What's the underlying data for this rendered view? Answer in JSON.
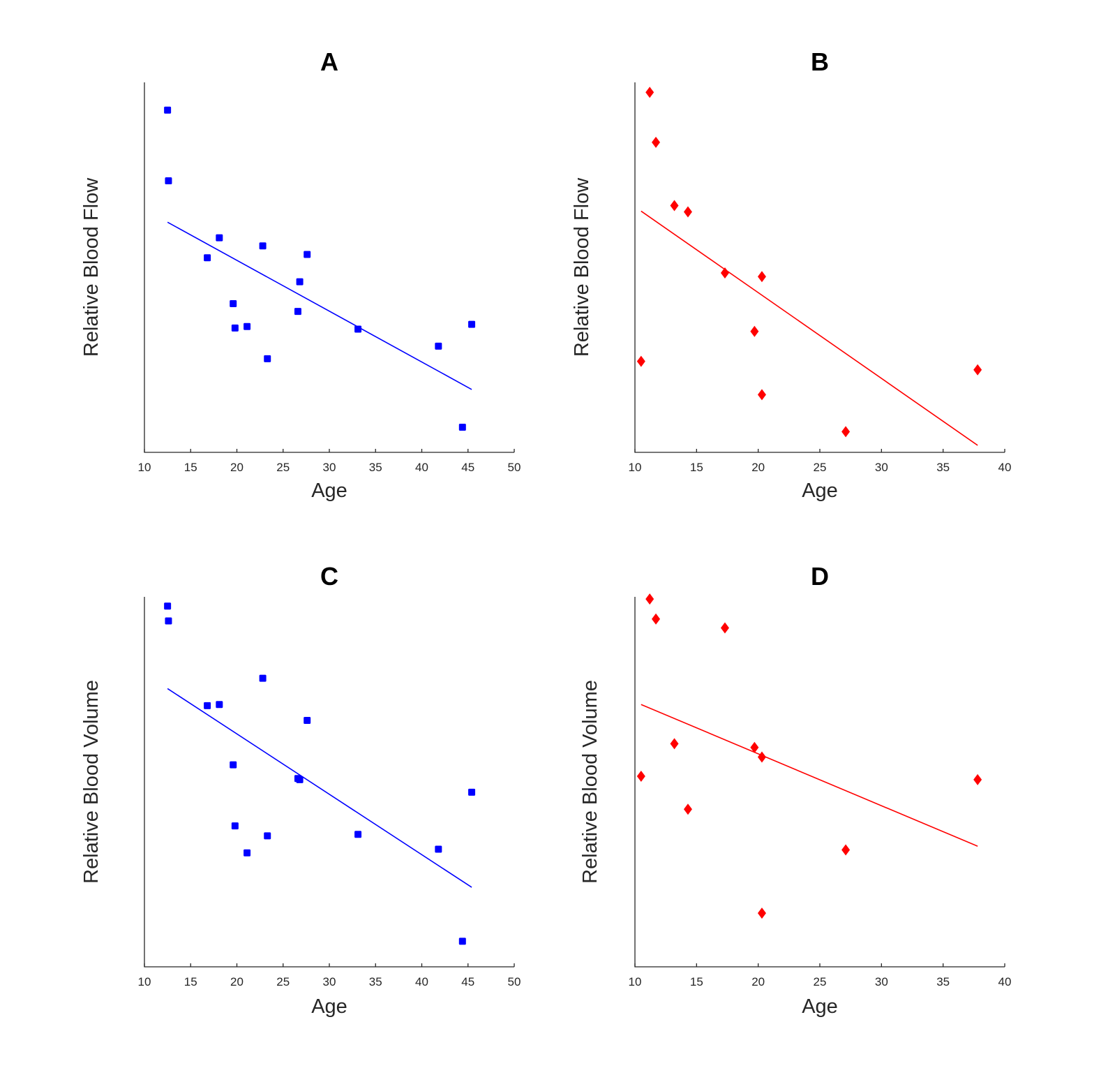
{
  "chart_data": [
    {
      "type": "scatter",
      "title": "A",
      "xlabel": "Age",
      "ylabel": "Relative Blood Flow",
      "xlim": [
        10,
        50
      ],
      "xticks": [
        "10",
        "15",
        "20",
        "25",
        "30",
        "35",
        "40",
        "45",
        "50"
      ],
      "ylim": [
        0,
        100
      ],
      "yticks_visible": false,
      "marker": "square",
      "color": "#0000ff",
      "series": [
        {
          "name": "subjects",
          "x": [
            12.5,
            12.6,
            16.8,
            18.1,
            19.6,
            19.8,
            21.1,
            22.8,
            23.3,
            26.6,
            26.8,
            27.6,
            33.1,
            41.8,
            44.4,
            45.4
          ],
          "y": [
            92.5,
            73.4,
            52.6,
            58.0,
            40.2,
            33.6,
            34.0,
            55.8,
            25.3,
            38.1,
            46.1,
            53.5,
            33.3,
            28.7,
            6.8,
            34.6
          ]
        }
      ],
      "fit_line": {
        "x": [
          12.5,
          45.4
        ],
        "y": [
          62.2,
          17.0
        ]
      }
    },
    {
      "type": "scatter",
      "title": "B",
      "xlabel": "Age",
      "ylabel": "Relative Blood Flow",
      "xlim": [
        10,
        40
      ],
      "xticks": [
        "10",
        "15",
        "20",
        "25",
        "30",
        "35",
        "40"
      ],
      "ylim": [
        0,
        100
      ],
      "yticks_visible": false,
      "marker": "diamond",
      "color": "#ff0000",
      "series": [
        {
          "name": "subjects",
          "x": [
            10.5,
            11.2,
            11.7,
            13.2,
            14.3,
            17.3,
            19.7,
            20.3,
            20.3,
            27.1,
            37.8
          ],
          "y": [
            24.6,
            97.3,
            83.8,
            66.7,
            65.0,
            48.5,
            32.7,
            47.5,
            15.6,
            5.6,
            22.3
          ]
        }
      ],
      "fit_line": {
        "x": [
          10.5,
          37.8
        ],
        "y": [
          65.2,
          1.9
        ]
      }
    },
    {
      "type": "scatter",
      "title": "C",
      "xlabel": "Age",
      "ylabel": "Relative Blood Volume",
      "xlim": [
        10,
        50
      ],
      "xticks": [
        "10",
        "15",
        "20",
        "25",
        "30",
        "35",
        "40",
        "45",
        "50"
      ],
      "ylim": [
        0,
        100
      ],
      "yticks_visible": false,
      "marker": "square",
      "color": "#0000ff",
      "series": [
        {
          "name": "subjects",
          "x": [
            12.5,
            12.6,
            16.8,
            18.1,
            19.6,
            19.8,
            21.1,
            22.8,
            23.3,
            26.6,
            26.8,
            27.6,
            33.1,
            41.8,
            44.4,
            45.4
          ],
          "y": [
            97.5,
            93.5,
            70.6,
            70.9,
            54.6,
            38.1,
            30.8,
            78.0,
            35.4,
            50.9,
            50.6,
            66.6,
            35.8,
            31.8,
            6.9,
            47.2
          ]
        }
      ],
      "fit_line": {
        "x": [
          12.5,
          45.4
        ],
        "y": [
          75.2,
          21.5
        ]
      }
    },
    {
      "type": "scatter",
      "title": "D",
      "xlabel": "Age",
      "ylabel": "Relative Blood Volume",
      "xlim": [
        10,
        40
      ],
      "xticks": [
        "10",
        "15",
        "20",
        "25",
        "30",
        "35",
        "40"
      ],
      "ylim": [
        0,
        100
      ],
      "yticks_visible": false,
      "marker": "diamond",
      "color": "#ff0000",
      "series": [
        {
          "name": "subjects",
          "x": [
            10.5,
            11.2,
            11.7,
            13.2,
            14.3,
            17.3,
            19.7,
            20.3,
            20.3,
            27.1,
            37.8
          ],
          "y": [
            51.5,
            99.4,
            94.0,
            60.3,
            42.6,
            91.6,
            59.3,
            56.7,
            14.5,
            31.6,
            50.6
          ]
        }
      ],
      "fit_line": {
        "x": [
          10.5,
          37.8
        ],
        "y": [
          70.9,
          32.6
        ]
      }
    }
  ]
}
